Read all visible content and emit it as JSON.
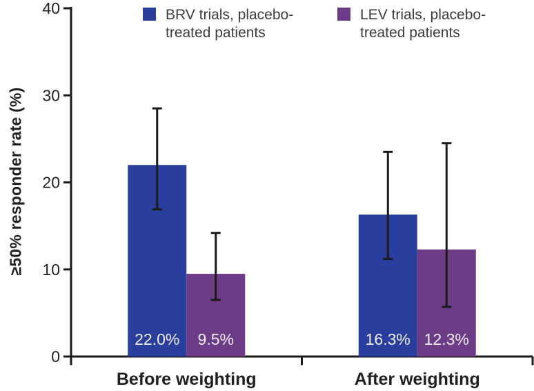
{
  "chart_data": {
    "type": "bar",
    "title": "",
    "ylabel": "≥50% responder rate (%)",
    "xlabel": "",
    "ylim": [
      0,
      40
    ],
    "yticks": [
      0,
      10,
      20,
      30,
      40
    ],
    "categories": [
      "Before weighting",
      "After weighting"
    ],
    "series": [
      {
        "name": "BRV trials, placebo-treated patients",
        "color": "#2A3F9D",
        "values": [
          22.0,
          16.3
        ],
        "bar_labels": [
          "22.0%",
          "16.3%"
        ],
        "ci_low": [
          16.9,
          11.2
        ],
        "ci_high": [
          28.5,
          23.5
        ]
      },
      {
        "name": "LEV trials, placebo-treated patients",
        "color": "#6C3C87",
        "values": [
          9.5,
          12.3
        ],
        "bar_labels": [
          "9.5%",
          "12.3%"
        ],
        "ci_low": [
          6.5,
          5.7
        ],
        "ci_high": [
          14.2,
          24.5
        ]
      }
    ],
    "error_bars": true,
    "legend_position": "top",
    "grid": false
  },
  "legend": {
    "items": [
      {
        "lines": [
          "BRV trials, placebo-",
          "treated patients"
        ],
        "color": "#2A3F9D"
      },
      {
        "lines": [
          "LEV trials, placebo-",
          "treated patients"
        ],
        "color": "#6C3C87"
      }
    ]
  },
  "colors": {
    "axis": "#1A1A1A",
    "tick_text": "#231F20",
    "category_text": "#231F20",
    "legend_text": "#3C3C3B",
    "bar_label_text": "#EFEDF2",
    "background": "#FFFFFF"
  }
}
